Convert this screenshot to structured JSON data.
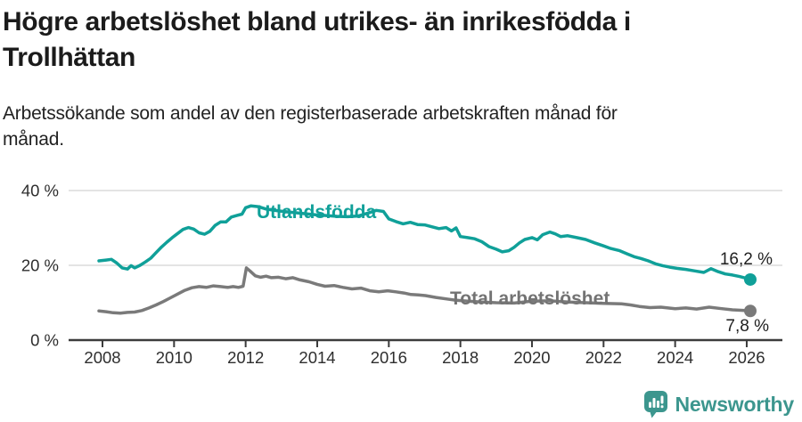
{
  "header": {
    "title_lines": [
      "Högre arbetslöshet bland utrikes- än inrikesfödda i",
      "Trollhättan"
    ],
    "subtitle_lines": [
      "Arbetssökande som andel av den registerbaserade arbetskraften månad för",
      "månad."
    ]
  },
  "chart_data": {
    "type": "line",
    "title": "Högre arbetslöshet bland utrikes- än inrikesfödda i Trollhättan",
    "subtitle": "Arbetssökande som andel av den registerbaserade arbetskraften månad för månad.",
    "unit": "%",
    "grid": true,
    "legend_position": "inline-labels",
    "x_axis": {
      "range": [
        2007.9,
        2026.35
      ],
      "ticks": [
        {
          "value": 2008,
          "label": "2008"
        },
        {
          "value": 2010,
          "label": "2010"
        },
        {
          "value": 2012,
          "label": "2012"
        },
        {
          "value": 2014,
          "label": "2014"
        },
        {
          "value": 2016,
          "label": "2016"
        },
        {
          "value": 2018,
          "label": "2018"
        },
        {
          "value": 2020,
          "label": "2020"
        },
        {
          "value": 2022,
          "label": "2022"
        },
        {
          "value": 2024,
          "label": "2024"
        },
        {
          "value": 2026,
          "label": "2026"
        }
      ]
    },
    "y_axis": {
      "range": [
        0,
        42
      ],
      "ticks": [
        {
          "value": 0,
          "label": "0 %"
        },
        {
          "value": 20,
          "label": "20 %"
        },
        {
          "value": 40,
          "label": "40 %"
        }
      ]
    },
    "series": [
      {
        "name": "Utlandsfödda",
        "color": "#10a099",
        "end_label": "16,2 %",
        "points": [
          [
            2007.9,
            21.2
          ],
          [
            2008.1,
            21.4
          ],
          [
            2008.25,
            21.6
          ],
          [
            2008.4,
            20.6
          ],
          [
            2008.55,
            19.3
          ],
          [
            2008.7,
            19.0
          ],
          [
            2008.8,
            19.9
          ],
          [
            2008.9,
            19.3
          ],
          [
            2009.05,
            20.0
          ],
          [
            2009.2,
            20.9
          ],
          [
            2009.35,
            21.9
          ],
          [
            2009.5,
            23.4
          ],
          [
            2009.65,
            24.9
          ],
          [
            2009.8,
            26.2
          ],
          [
            2009.95,
            27.4
          ],
          [
            2010.1,
            28.5
          ],
          [
            2010.25,
            29.6
          ],
          [
            2010.4,
            30.1
          ],
          [
            2010.55,
            29.7
          ],
          [
            2010.7,
            28.7
          ],
          [
            2010.85,
            28.3
          ],
          [
            2011.0,
            29.1
          ],
          [
            2011.15,
            30.7
          ],
          [
            2011.3,
            31.6
          ],
          [
            2011.45,
            31.6
          ],
          [
            2011.6,
            32.9
          ],
          [
            2011.75,
            33.3
          ],
          [
            2011.9,
            33.7
          ],
          [
            2012.0,
            35.4
          ],
          [
            2012.15,
            35.9
          ],
          [
            2012.35,
            35.7
          ],
          [
            2012.55,
            35.1
          ],
          [
            2012.8,
            34.7
          ],
          [
            2013.05,
            34.4
          ],
          [
            2013.35,
            34.1
          ],
          [
            2013.65,
            33.8
          ],
          [
            2013.95,
            33.5
          ],
          [
            2014.25,
            33.3
          ],
          [
            2014.55,
            33.1
          ],
          [
            2014.85,
            33.0
          ],
          [
            2015.15,
            33.2
          ],
          [
            2015.4,
            33.9
          ],
          [
            2015.65,
            34.7
          ],
          [
            2015.85,
            34.4
          ],
          [
            2016.0,
            32.4
          ],
          [
            2016.2,
            31.7
          ],
          [
            2016.4,
            31.1
          ],
          [
            2016.6,
            31.5
          ],
          [
            2016.8,
            30.9
          ],
          [
            2017.0,
            30.8
          ],
          [
            2017.2,
            30.3
          ],
          [
            2017.4,
            29.8
          ],
          [
            2017.6,
            30.1
          ],
          [
            2017.75,
            29.2
          ],
          [
            2017.88,
            30.0
          ],
          [
            2018.0,
            27.7
          ],
          [
            2018.2,
            27.4
          ],
          [
            2018.4,
            27.1
          ],
          [
            2018.6,
            26.3
          ],
          [
            2018.8,
            25.0
          ],
          [
            2019.0,
            24.3
          ],
          [
            2019.17,
            23.6
          ],
          [
            2019.35,
            23.9
          ],
          [
            2019.5,
            24.8
          ],
          [
            2019.65,
            26.0
          ],
          [
            2019.8,
            26.9
          ],
          [
            2020.0,
            27.4
          ],
          [
            2020.15,
            26.8
          ],
          [
            2020.3,
            28.2
          ],
          [
            2020.5,
            28.9
          ],
          [
            2020.65,
            28.4
          ],
          [
            2020.8,
            27.7
          ],
          [
            2021.0,
            27.9
          ],
          [
            2021.25,
            27.4
          ],
          [
            2021.5,
            26.9
          ],
          [
            2021.75,
            26.0
          ],
          [
            2022.0,
            25.2
          ],
          [
            2022.2,
            24.5
          ],
          [
            2022.45,
            23.9
          ],
          [
            2022.65,
            23.1
          ],
          [
            2022.85,
            22.3
          ],
          [
            2023.05,
            21.8
          ],
          [
            2023.25,
            21.2
          ],
          [
            2023.45,
            20.4
          ],
          [
            2023.65,
            19.9
          ],
          [
            2023.85,
            19.5
          ],
          [
            2024.05,
            19.2
          ],
          [
            2024.3,
            18.9
          ],
          [
            2024.55,
            18.5
          ],
          [
            2024.8,
            18.1
          ],
          [
            2025.0,
            19.1
          ],
          [
            2025.2,
            18.3
          ],
          [
            2025.4,
            17.7
          ],
          [
            2025.6,
            17.4
          ],
          [
            2025.8,
            17.0
          ],
          [
            2026.0,
            16.5
          ],
          [
            2026.1,
            16.2
          ]
        ]
      },
      {
        "name": "Total arbetslöshet",
        "color": "#7a7a7a",
        "end_label": "7,8 %",
        "points": [
          [
            2007.9,
            7.8
          ],
          [
            2008.1,
            7.6
          ],
          [
            2008.3,
            7.3
          ],
          [
            2008.5,
            7.2
          ],
          [
            2008.7,
            7.4
          ],
          [
            2008.9,
            7.5
          ],
          [
            2009.1,
            7.9
          ],
          [
            2009.3,
            8.6
          ],
          [
            2009.5,
            9.4
          ],
          [
            2009.7,
            10.3
          ],
          [
            2009.9,
            11.3
          ],
          [
            2010.1,
            12.3
          ],
          [
            2010.3,
            13.3
          ],
          [
            2010.5,
            14.0
          ],
          [
            2010.7,
            14.3
          ],
          [
            2010.9,
            14.1
          ],
          [
            2011.1,
            14.5
          ],
          [
            2011.3,
            14.3
          ],
          [
            2011.5,
            14.1
          ],
          [
            2011.65,
            14.3
          ],
          [
            2011.8,
            14.1
          ],
          [
            2011.93,
            14.4
          ],
          [
            2012.02,
            19.3
          ],
          [
            2012.12,
            18.5
          ],
          [
            2012.27,
            17.2
          ],
          [
            2012.42,
            16.8
          ],
          [
            2012.57,
            17.1
          ],
          [
            2012.72,
            16.7
          ],
          [
            2012.92,
            16.8
          ],
          [
            2013.12,
            16.4
          ],
          [
            2013.32,
            16.7
          ],
          [
            2013.52,
            16.1
          ],
          [
            2013.77,
            15.6
          ],
          [
            2014.0,
            14.9
          ],
          [
            2014.22,
            14.4
          ],
          [
            2014.47,
            14.6
          ],
          [
            2014.72,
            14.1
          ],
          [
            2014.97,
            13.7
          ],
          [
            2015.22,
            13.9
          ],
          [
            2015.47,
            13.2
          ],
          [
            2015.72,
            12.9
          ],
          [
            2015.97,
            13.2
          ],
          [
            2016.2,
            12.9
          ],
          [
            2016.42,
            12.6
          ],
          [
            2016.62,
            12.2
          ],
          [
            2016.82,
            12.1
          ],
          [
            2017.02,
            11.9
          ],
          [
            2017.32,
            11.4
          ],
          [
            2017.62,
            11.0
          ],
          [
            2017.85,
            10.7
          ],
          [
            2018.2,
            10.4
          ],
          [
            2018.6,
            10.2
          ],
          [
            2019.0,
            10.0
          ],
          [
            2019.5,
            9.9
          ],
          [
            2020.0,
            10.4
          ],
          [
            2020.5,
            10.5
          ],
          [
            2021.0,
            10.2
          ],
          [
            2021.5,
            10.0
          ],
          [
            2022.0,
            9.8
          ],
          [
            2022.5,
            9.7
          ],
          [
            2022.75,
            9.4
          ],
          [
            2023.0,
            9.0
          ],
          [
            2023.3,
            8.7
          ],
          [
            2023.6,
            8.8
          ],
          [
            2024.0,
            8.4
          ],
          [
            2024.3,
            8.6
          ],
          [
            2024.6,
            8.3
          ],
          [
            2024.95,
            8.8
          ],
          [
            2025.3,
            8.4
          ],
          [
            2025.6,
            8.1
          ],
          [
            2025.95,
            7.9
          ],
          [
            2026.1,
            7.8
          ]
        ]
      }
    ]
  },
  "footer": {
    "brand": "Newsworthy",
    "logo_color": "#3c968e"
  }
}
